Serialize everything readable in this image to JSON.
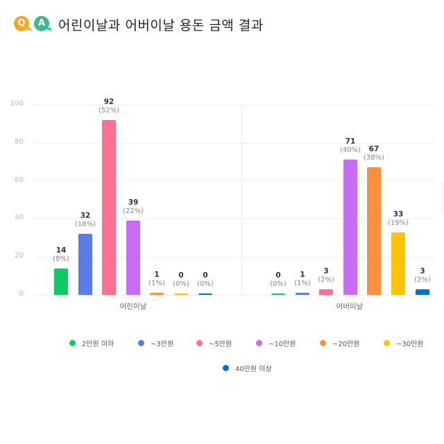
{
  "header": {
    "logo_q": "Q",
    "logo_a": "A",
    "title": "어린이날과 어버이날 용돈 금액 결과"
  },
  "colors": {
    "logo_q": "#f5a623",
    "logo_a": "#3dba8e"
  },
  "chart_data": {
    "type": "bar",
    "title": "어린이날과 어버이날 용돈 금액 결과",
    "xlabel": "",
    "ylabel": "",
    "ylim": [
      0,
      100
    ],
    "yticks": [
      "0",
      "20",
      "40",
      "60",
      "80",
      "100"
    ],
    "grid": true,
    "legend_position": "bottom",
    "categories": [
      "어린이날",
      "어버이날"
    ],
    "series": [
      {
        "name": "2만원 이하",
        "color": "#12c865",
        "values": [
          14,
          0
        ],
        "percents": [
          "(8%)",
          "(0%)"
        ]
      },
      {
        "name": "~3만원",
        "color": "#5b7be8",
        "values": [
          32,
          1
        ],
        "percents": [
          "(18%)",
          "(1%)"
        ]
      },
      {
        "name": "~5만원",
        "color": "#ff6f91",
        "values": [
          92,
          3
        ],
        "percents": [
          "(52%)",
          "(2%)"
        ]
      },
      {
        "name": "~10만원",
        "color": "#c96cf5",
        "values": [
          39,
          71
        ],
        "percents": [
          "(22%)",
          "(40%)"
        ]
      },
      {
        "name": "~20만원",
        "color": "#ff8f3f",
        "values": [
          1,
          67
        ],
        "percents": [
          "(1%)",
          "(38%)"
        ]
      },
      {
        "name": "~30만원",
        "color": "#ffc20a",
        "values": [
          0,
          33
        ],
        "percents": [
          "(0%)",
          "(19%)"
        ]
      },
      {
        "name": "40만원 이상",
        "color": "#0a6fc9",
        "values": [
          0,
          3
        ],
        "percents": [
          "(0%)",
          "(2%)"
        ]
      }
    ]
  }
}
